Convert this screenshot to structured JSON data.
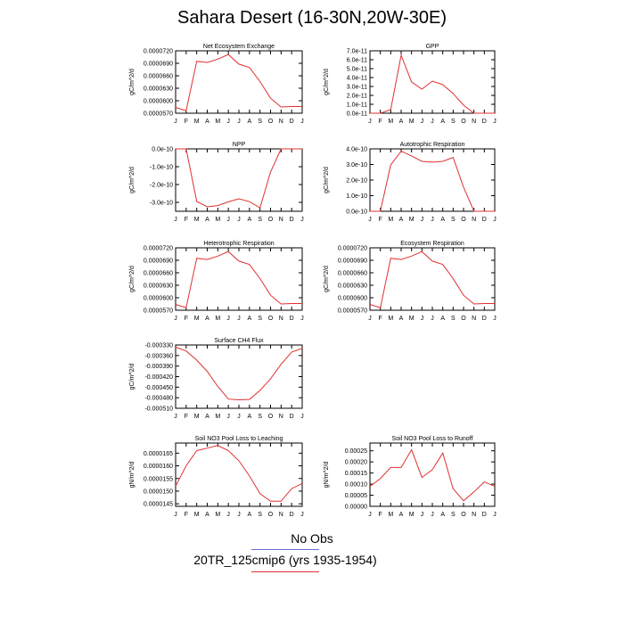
{
  "title": "Sahara Desert (16-30N,20W-30E)",
  "legend": {
    "obs_label": "No Obs",
    "run_label": "20TR_125cmip6 (yrs 1935-1954)",
    "obs_color": "#6a6fd8",
    "run_color": "#e0302f"
  },
  "chart_data": [
    {
      "type": "line",
      "title": "Net Ecosystem Exchange",
      "ylabel": "gC/m^2/d",
      "categories": [
        "J",
        "F",
        "M",
        "A",
        "M",
        "J",
        "J",
        "A",
        "S",
        "O",
        "N",
        "D",
        "J"
      ],
      "yticks": [
        "0.0000570",
        "0.0000600",
        "0.0000630",
        "0.0000660",
        "0.0000690",
        "0.0000720"
      ],
      "ylim": [
        5.7e-05,
        7.2e-05
      ],
      "values": [
        5.84e-05,
        5.76e-05,
        6.95e-05,
        6.92e-05,
        7e-05,
        7.11e-05,
        6.88e-05,
        6.8e-05,
        6.46e-05,
        6.06e-05,
        5.85e-05,
        5.86e-05,
        5.86e-05
      ],
      "color": "#e0302f"
    },
    {
      "type": "line",
      "title": "GPP",
      "ylabel": "gC/m^2/d",
      "categories": [
        "J",
        "F",
        "M",
        "A",
        "M",
        "J",
        "J",
        "A",
        "S",
        "O",
        "N",
        "D",
        "J"
      ],
      "yticks": [
        "0.0e-11",
        "1.0e-11",
        "2.0e-11",
        "3.0e-11",
        "4.0e-11",
        "5.0e-11",
        "6.0e-11",
        "7.0e-11"
      ],
      "ylim": [
        0,
        7e-11
      ],
      "values": [
        0,
        0,
        4e-12,
        6.5e-11,
        3.5e-11,
        2.7e-11,
        3.6e-11,
        3.2e-11,
        2.2e-11,
        9e-12,
        0,
        0,
        0
      ],
      "color": "#e0302f"
    },
    {
      "type": "line",
      "title": "NPP",
      "ylabel": "gC/m^2/d",
      "categories": [
        "J",
        "F",
        "M",
        "A",
        "M",
        "J",
        "J",
        "A",
        "S",
        "O",
        "N",
        "D",
        "J"
      ],
      "yticks": [
        "-3.0e-10",
        "-2.0e-10",
        "-1.0e-10",
        "0.0e-10"
      ],
      "ylim": [
        -3.5e-10,
        0
      ],
      "values": [
        0,
        0,
        -2.95e-10,
        -3.25e-10,
        -3.18e-10,
        -2.97e-10,
        -2.8e-10,
        -2.96e-10,
        -3.3e-10,
        -1.3e-10,
        0,
        0,
        0
      ],
      "color": "#e0302f"
    },
    {
      "type": "line",
      "title": "Autotrophic Respiration",
      "ylabel": "gC/m^2/d",
      "categories": [
        "J",
        "F",
        "M",
        "A",
        "M",
        "J",
        "J",
        "A",
        "S",
        "O",
        "N",
        "D",
        "J"
      ],
      "yticks": [
        "0.0e-10",
        "1.0e-10",
        "2.0e-10",
        "3.0e-10",
        "4.0e-10"
      ],
      "ylim": [
        0,
        4e-10
      ],
      "values": [
        0,
        0,
        2.97e-10,
        3.85e-10,
        3.55e-10,
        3.2e-10,
        3.15e-10,
        3.2e-10,
        3.45e-10,
        1.55e-10,
        0,
        0,
        0
      ],
      "color": "#e0302f"
    },
    {
      "type": "line",
      "title": "Heterotrophic Respiration",
      "ylabel": "gC/m^2/d",
      "categories": [
        "J",
        "F",
        "M",
        "A",
        "M",
        "J",
        "J",
        "A",
        "S",
        "O",
        "N",
        "D",
        "J"
      ],
      "yticks": [
        "0.0000570",
        "0.0000600",
        "0.0000630",
        "0.0000660",
        "0.0000690",
        "0.0000720"
      ],
      "ylim": [
        5.7e-05,
        7.2e-05
      ],
      "values": [
        5.84e-05,
        5.76e-05,
        6.95e-05,
        6.92e-05,
        7e-05,
        7.11e-05,
        6.88e-05,
        6.8e-05,
        6.46e-05,
        6.06e-05,
        5.85e-05,
        5.86e-05,
        5.86e-05
      ],
      "color": "#e0302f"
    },
    {
      "type": "line",
      "title": "Ecosystem Respiration",
      "ylabel": "gC/m^2/d",
      "categories": [
        "J",
        "F",
        "M",
        "A",
        "M",
        "J",
        "J",
        "A",
        "S",
        "O",
        "N",
        "D",
        "J"
      ],
      "yticks": [
        "0.0000570",
        "0.0000600",
        "0.0000630",
        "0.0000660",
        "0.0000690",
        "0.0000720"
      ],
      "ylim": [
        5.7e-05,
        7.2e-05
      ],
      "values": [
        5.84e-05,
        5.76e-05,
        6.95e-05,
        6.92e-05,
        7e-05,
        7.11e-05,
        6.88e-05,
        6.8e-05,
        6.46e-05,
        6.06e-05,
        5.85e-05,
        5.86e-05,
        5.86e-05
      ],
      "color": "#e0302f"
    },
    {
      "type": "line",
      "title": "Surface CH4 Flux",
      "ylabel": "gC/m^2/d",
      "categories": [
        "J",
        "F",
        "M",
        "A",
        "M",
        "J",
        "J",
        "A",
        "S",
        "O",
        "N",
        "D",
        "J"
      ],
      "yticks": [
        "-0.000510",
        "-0.000480",
        "-0.000450",
        "-0.000420",
        "-0.000390",
        "-0.000360",
        "-0.000330"
      ],
      "ylim": [
        -0.00051,
        -0.00033
      ],
      "values": [
        -0.000336,
        -0.000347,
        -0.000373,
        -0.000405,
        -0.000448,
        -0.000484,
        -0.000486,
        -0.000485,
        -0.000459,
        -0.000426,
        -0.000385,
        -0.00035,
        -0.00034
      ],
      "color": "#e0302f"
    },
    {
      "type": "line",
      "title": "Soil NO3 Pool Loss to Leaching",
      "ylabel": "gN/m^2/d",
      "categories": [
        "J",
        "F",
        "M",
        "A",
        "M",
        "J",
        "J",
        "A",
        "S",
        "O",
        "N",
        "D",
        "J"
      ],
      "yticks": [
        "0.0000145",
        "0.0000150",
        "0.0000155",
        "0.0000160",
        "0.0000165"
      ],
      "ylim": [
        1.44e-05,
        1.69e-05
      ],
      "values": [
        1.52e-05,
        1.6e-05,
        1.66e-05,
        1.67e-05,
        1.68e-05,
        1.66e-05,
        1.62e-05,
        1.56e-05,
        1.49e-05,
        1.46e-05,
        1.46e-05,
        1.51e-05,
        1.53e-05
      ],
      "color": "#e0302f"
    },
    {
      "type": "line",
      "title": "Soil NO3 Pool Loss to Runoff",
      "ylabel": "gN/m^2/d",
      "categories": [
        "J",
        "F",
        "M",
        "A",
        "M",
        "J",
        "J",
        "A",
        "S",
        "O",
        "N",
        "D",
        "J"
      ],
      "yticks": [
        "0.00000",
        "0.00005",
        "0.00010",
        "0.00015",
        "0.00020",
        "0.00025"
      ],
      "ylim": [
        0,
        0.000285
      ],
      "values": [
        9e-05,
        0.000125,
        0.000175,
        0.000175,
        0.000255,
        0.00013,
        0.000165,
        0.00024,
        8e-05,
        2.5e-05,
        6.5e-05,
        0.00011,
        9e-05
      ],
      "color": "#e0302f"
    }
  ]
}
